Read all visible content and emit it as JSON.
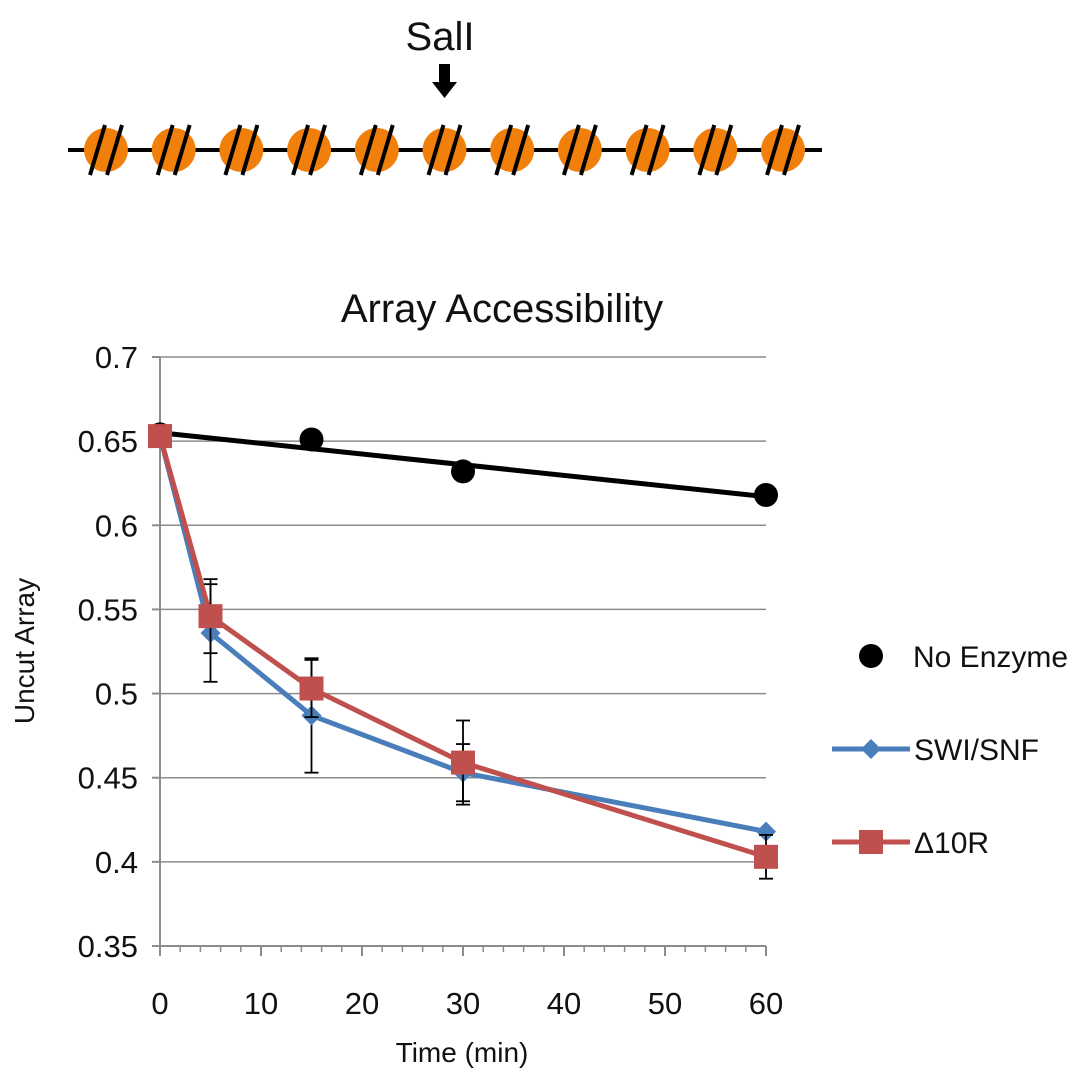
{
  "diagram": {
    "site_label": "SalI",
    "nucleosome_count": 11,
    "marked_nucleosome": 6,
    "nucleosome_color": "#f07f0b"
  },
  "chart_data": {
    "type": "line",
    "title": "Array Accessibility",
    "xlabel": "Time (min)",
    "ylabel": "Uncut Array",
    "xlim": [
      0,
      60
    ],
    "ylim": [
      0.35,
      0.7
    ],
    "xticks": [
      0,
      10,
      20,
      30,
      40,
      50,
      60
    ],
    "xtick_labels": [
      "0",
      "10",
      "20",
      "30",
      "40",
      "50",
      "60"
    ],
    "yticks": [
      0.35,
      0.4,
      0.45,
      0.5,
      0.55,
      0.6,
      0.65,
      0.7
    ],
    "ytick_labels": [
      "0.35",
      "0.4",
      "0.45",
      "0.5",
      "0.55",
      "0.6",
      "0.65",
      "0.7"
    ],
    "grid": true,
    "legend_position": "right",
    "series": [
      {
        "name": "No Enzyme",
        "marker": "circle",
        "color": "#000000",
        "trendline": {
          "x": [
            0,
            60
          ],
          "y": [
            0.655,
            0.617
          ]
        },
        "x": [
          0,
          15,
          30,
          60
        ],
        "y": [
          0.654,
          0.651,
          0.632,
          0.618
        ]
      },
      {
        "name": "SWI/SNF",
        "marker": "diamond",
        "color": "#4a7ebb",
        "x": [
          0,
          5,
          15,
          30,
          60
        ],
        "y": [
          0.653,
          0.536,
          0.487,
          0.453,
          0.418
        ],
        "errors": [
          null,
          0.029,
          0.034,
          0.017,
          null
        ]
      },
      {
        "name": "Δ10R",
        "marker": "square",
        "color": "#c0504d",
        "x": [
          0,
          5,
          15,
          30,
          60
        ],
        "y": [
          0.653,
          0.546,
          0.503,
          0.459,
          0.403
        ],
        "errors": [
          null,
          0.022,
          0.017,
          0.025,
          0.013
        ]
      }
    ]
  }
}
